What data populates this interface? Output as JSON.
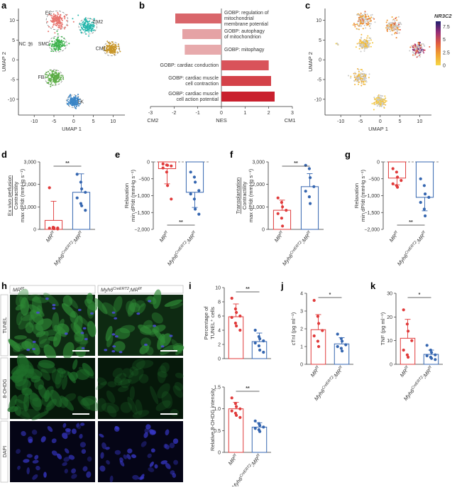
{
  "panel_labels": [
    "a",
    "b",
    "c",
    "d",
    "e",
    "f",
    "g",
    "h",
    "i",
    "j",
    "k"
  ],
  "chart_data": [
    {
      "id": "a",
      "type": "scatter",
      "xlabel": "UMAP 1",
      "ylabel": "UMAP 2",
      "xticks": [
        -10,
        -5,
        0,
        5,
        10
      ],
      "yticks": [
        -10,
        -5,
        0,
        5,
        10
      ],
      "xlim": [
        -14,
        13
      ],
      "ylim": [
        -14,
        13
      ],
      "clusters": [
        {
          "name": "EC",
          "color": "#e8746e",
          "cx": -4.2,
          "cy": 10.0,
          "r": 2.4
        },
        {
          "name": "CM2",
          "color": "#28b7ad",
          "cx": 3.6,
          "cy": 8.5,
          "r": 2.0
        },
        {
          "name": "NC",
          "color": "#999999",
          "cx": -11.0,
          "cy": 4.0,
          "r": 0.5
        },
        {
          "name": "SMC",
          "color": "#3fb34f",
          "cx": -4.0,
          "cy": 4.0,
          "r": 2.0
        },
        {
          "name": "CM1",
          "color": "#c8962a",
          "cx": 9.6,
          "cy": 2.8,
          "r": 1.8
        },
        {
          "name": "FB",
          "color": "#5cad46",
          "cx": -5.0,
          "cy": -4.5,
          "r": 2.0
        },
        {
          "name": "LK",
          "color": "#3a85c6",
          "cx": 0.0,
          "cy": -10.5,
          "r": 1.6
        }
      ]
    },
    {
      "id": "b",
      "type": "bar",
      "xlabel": "NES",
      "xlabel_left": "CM2",
      "xlabel_right": "CM1",
      "xlim": [
        -3,
        3
      ],
      "xticks": [
        -3,
        -2,
        -1,
        0,
        1,
        2,
        3
      ],
      "categories": [
        "GOBP: regulation of mitochondrial membrane potential",
        "GOBP: autophagy of mitochondrion",
        "GOBP: mitophagy",
        "GOBP: cardiac conduction",
        "GOBP: cardiac muscle cell contraction",
        "GOBP: cardiac muscle cell action potential"
      ],
      "category_lines": [
        [
          "GOBP: regulation of",
          "mitochondrial",
          "membrane potential"
        ],
        [
          "GOBP: autophagy",
          "of mitochondrion"
        ],
        [
          "GOBP: mitophagy"
        ],
        [
          "GOBP: cardiac conduction"
        ],
        [
          "GOBP: cardiac muscle",
          "cell contraction"
        ],
        [
          "GOBP: cardiac muscle",
          "cell action potential"
        ]
      ],
      "values": [
        -1.95,
        -1.65,
        -1.55,
        2.0,
        2.1,
        2.25
      ],
      "colors": [
        "#d9666b",
        "#e5a2a5",
        "#e7aaac",
        "#d9535a",
        "#d44249",
        "#c9202e"
      ]
    },
    {
      "id": "c",
      "type": "scatter",
      "xlabel": "UMAP 1",
      "ylabel": "UMAP 2",
      "xticks": [
        -10,
        -5,
        0,
        5,
        10
      ],
      "yticks": [
        -10,
        -5,
        0,
        5,
        10
      ],
      "colorbar_title": "NR3C2",
      "colorbar_ticks": [
        0,
        2.5,
        5,
        7.5
      ],
      "colorbar_range": [
        0,
        8.5
      ]
    },
    {
      "id": "d",
      "type": "bar",
      "ylabel_prefix": "Ex vivo perfusion",
      "ylabel": "Contractility max dP/dt (mmHg s⁻¹)",
      "ylabel_lines": [
        "Ex vivo perfusion",
        "Contractility",
        "max dP/dt (mmHg s⁻¹)"
      ],
      "ylim": [
        0,
        3000
      ],
      "yticks": [
        0,
        1000,
        2000,
        3000
      ],
      "ytick_labels": [
        "0",
        "1,000",
        "2,000",
        "3,000"
      ],
      "categories": [
        "MR f/f",
        "Myh6 CreERT2 ;MR f/f"
      ],
      "series": [
        {
          "name": "MR f/f",
          "mean": 400,
          "sd": 850,
          "color": "#e03a3a",
          "points": [
            1850,
            90,
            70,
            60,
            50,
            40,
            30,
            20
          ]
        },
        {
          "name": "Myh6CreERT2;MRf/f",
          "mean": 1650,
          "sd": 820,
          "color": "#3566b0",
          "points": [
            2450,
            2100,
            1800,
            1650,
            1400,
            1150,
            1050,
            850
          ]
        }
      ],
      "significance": "**"
    },
    {
      "id": "e",
      "type": "bar",
      "ylabel": "Relaxation min dP/dt (mmHg s⁻¹)",
      "ylabel_lines": [
        "Relaxation",
        "min dP/dt (mmHg s⁻¹)"
      ],
      "ylim": [
        -2000,
        0
      ],
      "yticks": [
        0,
        -500,
        -1000,
        -1500,
        -2000
      ],
      "ytick_labels": [
        "0",
        "−500",
        "−1,000",
        "−1,500",
        "−2,000"
      ],
      "categories": [
        "MR f/f",
        "Myh6 CreERT2 ;MR f/f"
      ],
      "series": [
        {
          "name": "MR f/f",
          "mean": -200,
          "sd": 450,
          "color": "#e03a3a",
          "points": [
            -60,
            -90,
            -100,
            -120,
            -180,
            -300,
            -700,
            -1100
          ]
        },
        {
          "name": "Myh6CreERT2;MRf/f",
          "mean": -900,
          "sd": 450,
          "color": "#3566b0",
          "points": [
            -300,
            -450,
            -600,
            -850,
            -950,
            -1100,
            -1400,
            -1550
          ]
        }
      ],
      "significance": "**"
    },
    {
      "id": "f",
      "type": "bar",
      "ylabel_prefix": "Transplantation",
      "ylabel": "Contractility max dP/dt (mmHg s⁻¹)",
      "ylabel_lines": [
        "Transplantation",
        "Contractility",
        "max dP/dt (mmHg s⁻¹)"
      ],
      "ylim": [
        0,
        3000
      ],
      "yticks": [
        0,
        1000,
        2000,
        3000
      ],
      "ytick_labels": [
        "0",
        "1,000",
        "2,000",
        "3,000"
      ],
      "categories": [
        "MR f/f",
        "Myh6 CreERT2 ;MR f/f"
      ],
      "series": [
        {
          "name": "MR f/f",
          "mean": 850,
          "sd": 450,
          "color": "#e03a3a",
          "points": [
            1400,
            1200,
            1000,
            850,
            700,
            500,
            150
          ]
        },
        {
          "name": "Myh6CreERT2;MRf/f",
          "mean": 1900,
          "sd": 580,
          "color": "#3566b0",
          "points": [
            2850,
            2700,
            2300,
            1900,
            1700,
            1450,
            1150
          ]
        }
      ],
      "significance": "**"
    },
    {
      "id": "g",
      "type": "bar",
      "ylabel": "Relaxation min dP/dt (mmHg s⁻¹)",
      "ylabel_lines": [
        "Relaxation",
        "min dP/dt (mmHg s⁻¹)"
      ],
      "ylim": [
        -2000,
        0
      ],
      "yticks": [
        0,
        -500,
        -1000,
        -1500,
        -2000
      ],
      "ytick_labels": [
        "0",
        "−500",
        "−1,000",
        "−1,500",
        "−2,000"
      ],
      "categories": [
        "MR f/f",
        "Myh6 CreERT2 ;MR f/f"
      ],
      "series": [
        {
          "name": "MR f/f",
          "mean": -480,
          "sd": 200,
          "color": "#e03a3a",
          "points": [
            -200,
            -300,
            -450,
            -550,
            -650,
            -700,
            -750
          ]
        },
        {
          "name": "Myh6CreERT2;MRf/f",
          "mean": -1050,
          "sd": 400,
          "color": "#3566b0",
          "points": [
            -500,
            -700,
            -950,
            -1050,
            -1200,
            -1400,
            -1600
          ]
        }
      ],
      "significance": "**"
    },
    {
      "id": "i1",
      "type": "bar",
      "ylabel": "Percentage of TUNEL+ cells",
      "ylabel_lines": [
        "Percentage of",
        "TUNEL⁺ cells"
      ],
      "ylim": [
        0,
        10
      ],
      "yticks": [
        0,
        2,
        4,
        6,
        8,
        10
      ],
      "ytick_labels": [
        "0",
        "2",
        "4",
        "6",
        "8",
        "10"
      ],
      "categories": [
        "MR f/f",
        "Myh6 CreERT2 ;MR f/f"
      ],
      "series": [
        {
          "name": "MR f/f",
          "mean": 5.9,
          "sd": 1.8,
          "color": "#e03a3a",
          "points": [
            8.5,
            7.0,
            6.5,
            6.0,
            5.8,
            5.0,
            4.6,
            4.0
          ]
        },
        {
          "name": "Myh6CreERT2;MRf/f",
          "mean": 2.4,
          "sd": 1.2,
          "color": "#3566b0",
          "points": [
            4.0,
            3.1,
            2.8,
            2.5,
            2.2,
            1.8,
            1.2,
            0.9
          ]
        }
      ],
      "significance": "**"
    },
    {
      "id": "i2",
      "type": "bar",
      "ylabel": "Relative 8-OHDG intensity",
      "ylabel_lines": [
        "Relative 8-OHDG intensity"
      ],
      "ylim": [
        0,
        1.5
      ],
      "yticks": [
        0,
        0.5,
        1.0,
        1.5
      ],
      "ytick_labels": [
        "0",
        "0.5",
        "1.0",
        "1.5"
      ],
      "categories": [
        "MR f/f",
        "Myh6 CreERT2 ;MR f/f"
      ],
      "series": [
        {
          "name": "MR f/f",
          "mean": 1.0,
          "sd": 0.15,
          "color": "#e03a3a",
          "points": [
            1.25,
            1.12,
            1.05,
            1.0,
            0.95,
            0.9,
            0.85,
            0.8
          ]
        },
        {
          "name": "Myh6CreERT2;MRf/f",
          "mean": 0.58,
          "sd": 0.1,
          "color": "#3566b0",
          "points": [
            0.72,
            0.66,
            0.62,
            0.58,
            0.55,
            0.52,
            0.48
          ]
        }
      ],
      "significance": "**"
    },
    {
      "id": "j",
      "type": "bar",
      "ylabel": "cTnI (pg ml⁻¹)",
      "ylabel_lines": [
        "cTnI (pg ml⁻¹)"
      ],
      "ylim": [
        0,
        4
      ],
      "yticks": [
        0,
        1,
        2,
        3,
        4
      ],
      "ytick_labels": [
        "0",
        "1",
        "2",
        "3",
        "4"
      ],
      "categories": [
        "MR f/f",
        "Myh6 CreERT2 ;MR f/f"
      ],
      "series": [
        {
          "name": "MR f/f",
          "mean": 1.95,
          "sd": 0.85,
          "color": "#e03a3a",
          "points": [
            3.6,
            2.7,
            2.3,
            1.9,
            1.6,
            1.3,
            1.0
          ]
        },
        {
          "name": "Myh6CreERT2;MRf/f",
          "mean": 1.15,
          "sd": 0.35,
          "color": "#3566b0",
          "points": [
            1.7,
            1.45,
            1.3,
            1.1,
            1.0,
            0.9,
            0.75
          ]
        }
      ],
      "significance": "*"
    },
    {
      "id": "k",
      "type": "bar",
      "ylabel": "TNF (pg ml⁻¹)",
      "ylabel_lines": [
        "TNF (pg ml⁻¹)"
      ],
      "ylim": [
        0,
        30
      ],
      "yticks": [
        0,
        10,
        20,
        30
      ],
      "ytick_labels": [
        "0",
        "10",
        "20",
        "30"
      ],
      "categories": [
        "MR f/f",
        "Myh6 CreERT2 ;MR f/f"
      ],
      "series": [
        {
          "name": "MR f/f",
          "mean": 11,
          "sd": 8,
          "color": "#e03a3a",
          "points": [
            23,
            17,
            14,
            10,
            6,
            4,
            3
          ]
        },
        {
          "name": "Myh6CreERT2;MRf/f",
          "mean": 4.2,
          "sd": 1.8,
          "color": "#3566b0",
          "points": [
            8,
            6,
            5,
            4,
            3.6,
            3,
            2.5,
            2
          ]
        }
      ],
      "significance": "*"
    }
  ],
  "micrograph": {
    "column_headers": [
      "MR f/f",
      "Myh6 CreERT2 ;MR f/f"
    ],
    "row_labels": [
      "TUNEL",
      "8-OHDG",
      "DAPI"
    ]
  }
}
